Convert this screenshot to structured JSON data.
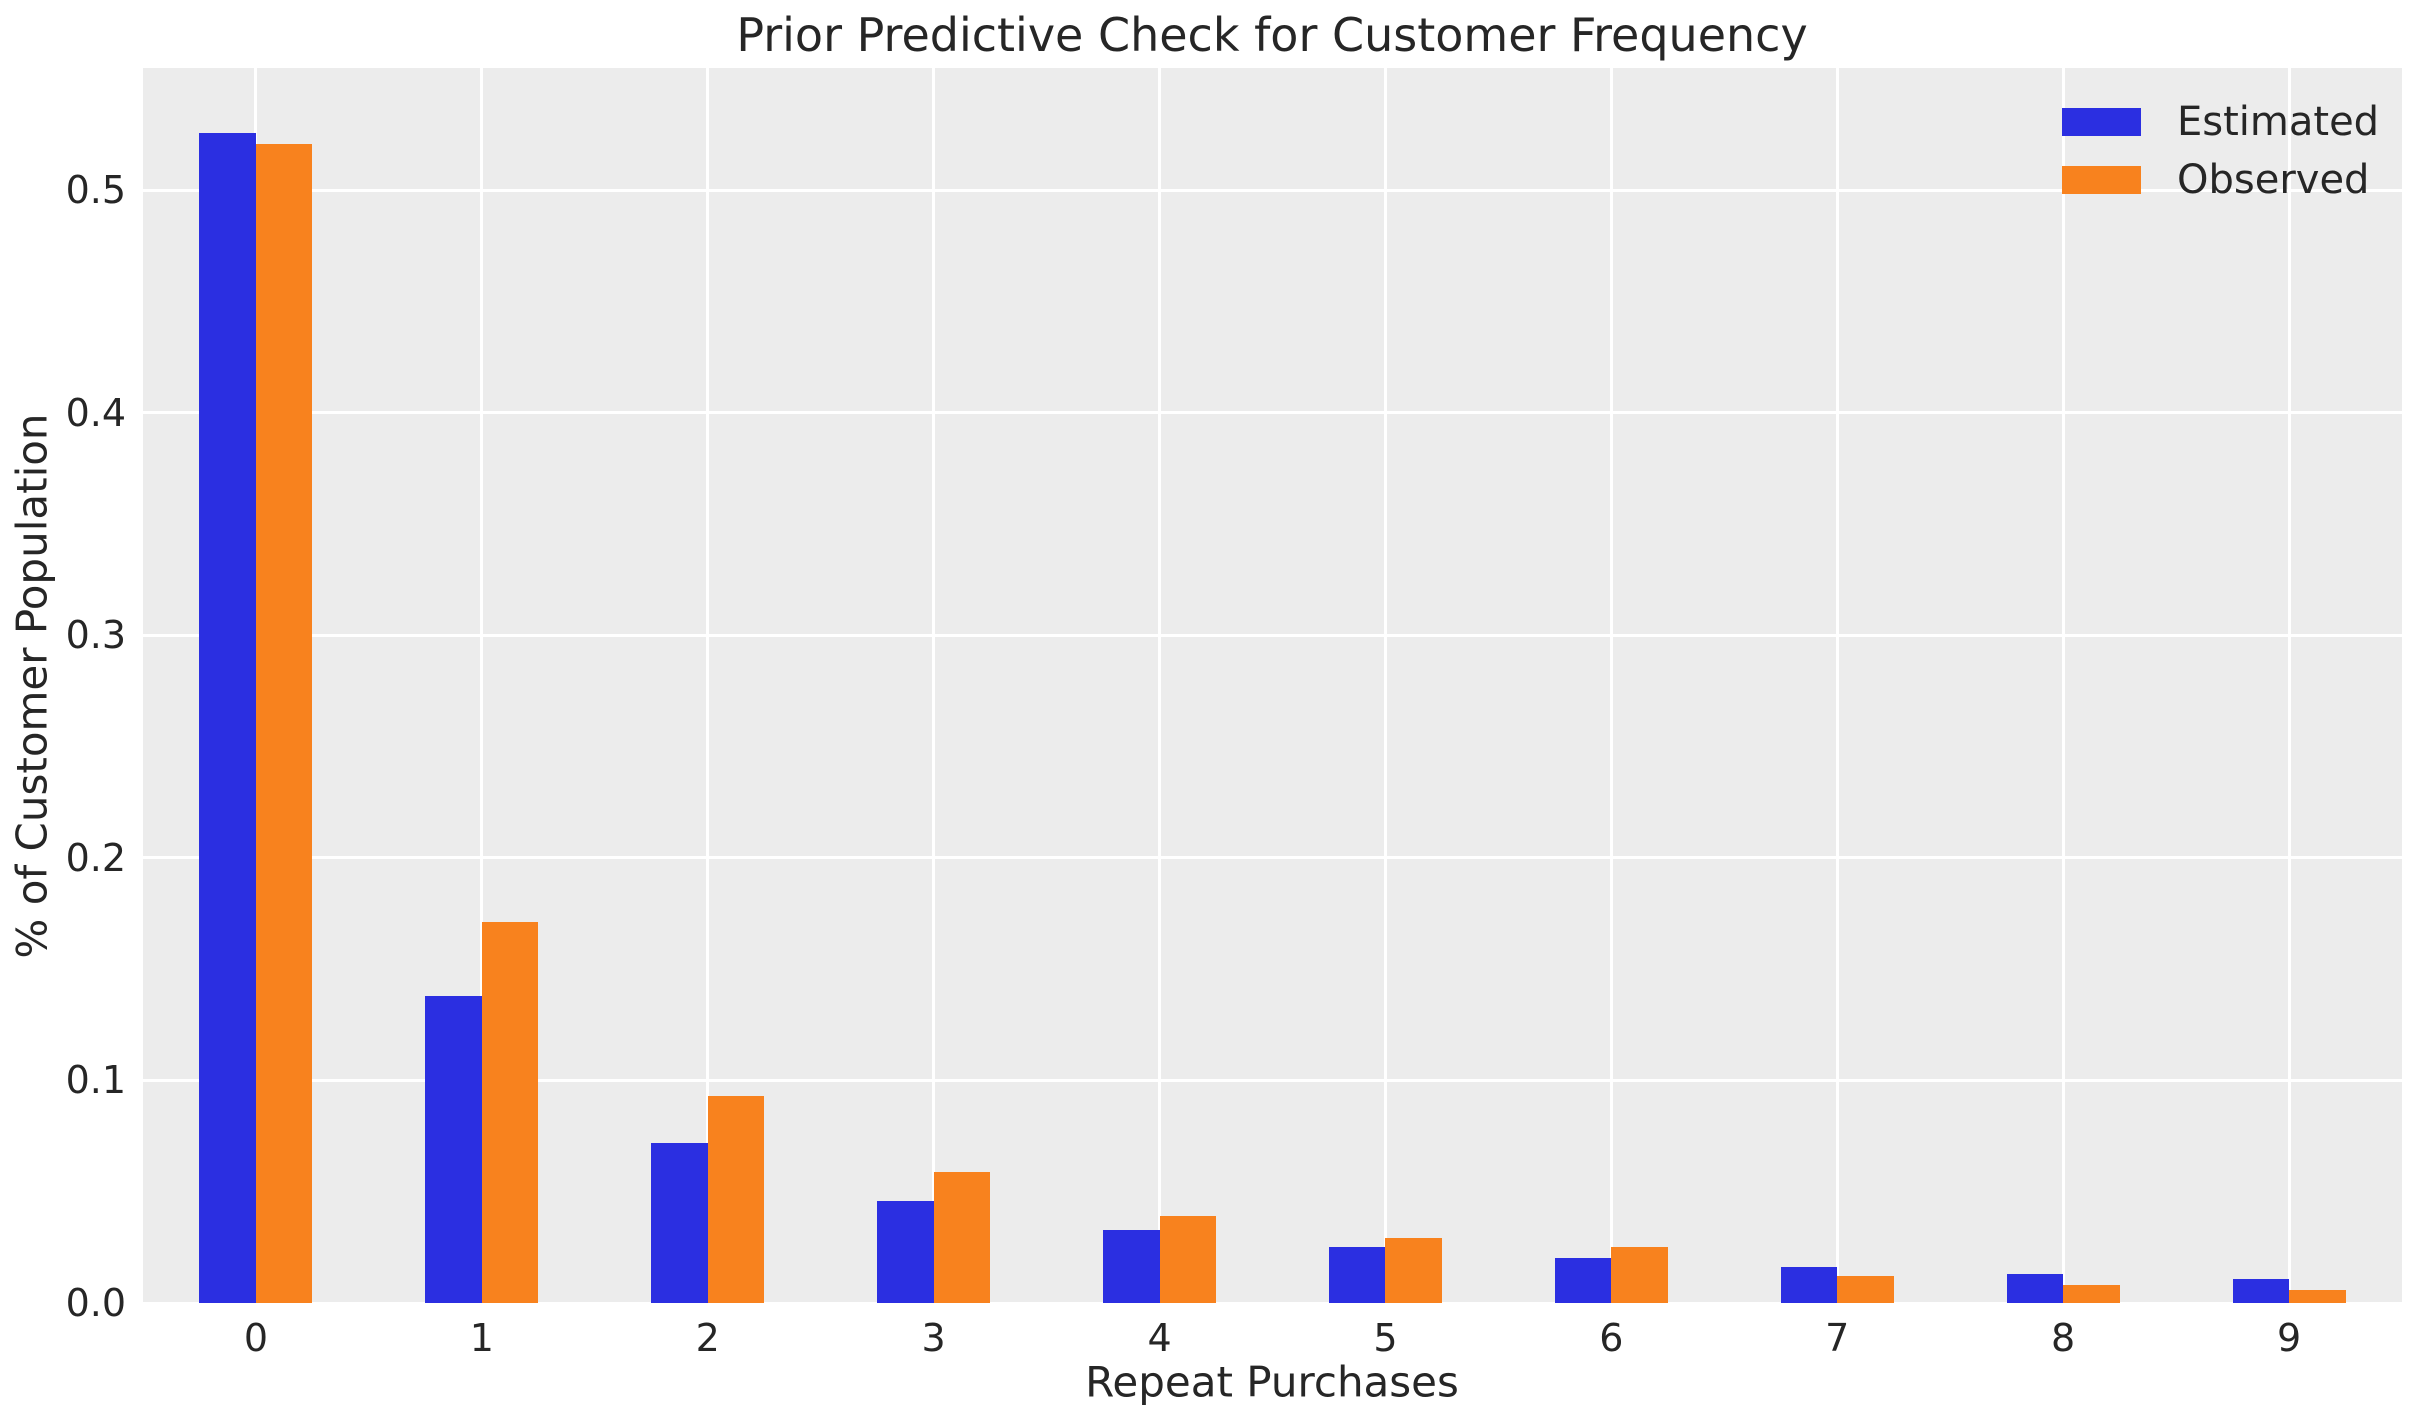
{
  "chart_data": {
    "type": "bar",
    "title": "Prior Predictive Check for Customer Frequency",
    "xlabel": "Repeat Purchases",
    "ylabel": "% of Customer Population",
    "categories": [
      "0",
      "1",
      "2",
      "3",
      "4",
      "5",
      "6",
      "7",
      "8",
      "9"
    ],
    "series": [
      {
        "name": "Estimated",
        "color": "#2b2fe1",
        "values": [
          0.526,
          0.138,
          0.072,
          0.046,
          0.033,
          0.025,
          0.02,
          0.016,
          0.013,
          0.011
        ]
      },
      {
        "name": "Observed",
        "color": "#f8821e",
        "values": [
          0.521,
          0.171,
          0.093,
          0.059,
          0.039,
          0.029,
          0.025,
          0.012,
          0.008,
          0.006
        ]
      }
    ],
    "yticks": [
      0.0,
      0.1,
      0.2,
      0.3,
      0.4,
      0.5
    ],
    "ytick_labels": [
      "0.0",
      "0.1",
      "0.2",
      "0.3",
      "0.4",
      "0.5"
    ],
    "ylim": [
      0,
      0.555
    ],
    "grid": true,
    "legend_position": "upper right",
    "bar_group_width_fraction": 0.5,
    "colors": {
      "figure_background": "#ffffff",
      "plot_background": "#ececec",
      "grid": "#ffffff",
      "text": "#262626"
    }
  }
}
